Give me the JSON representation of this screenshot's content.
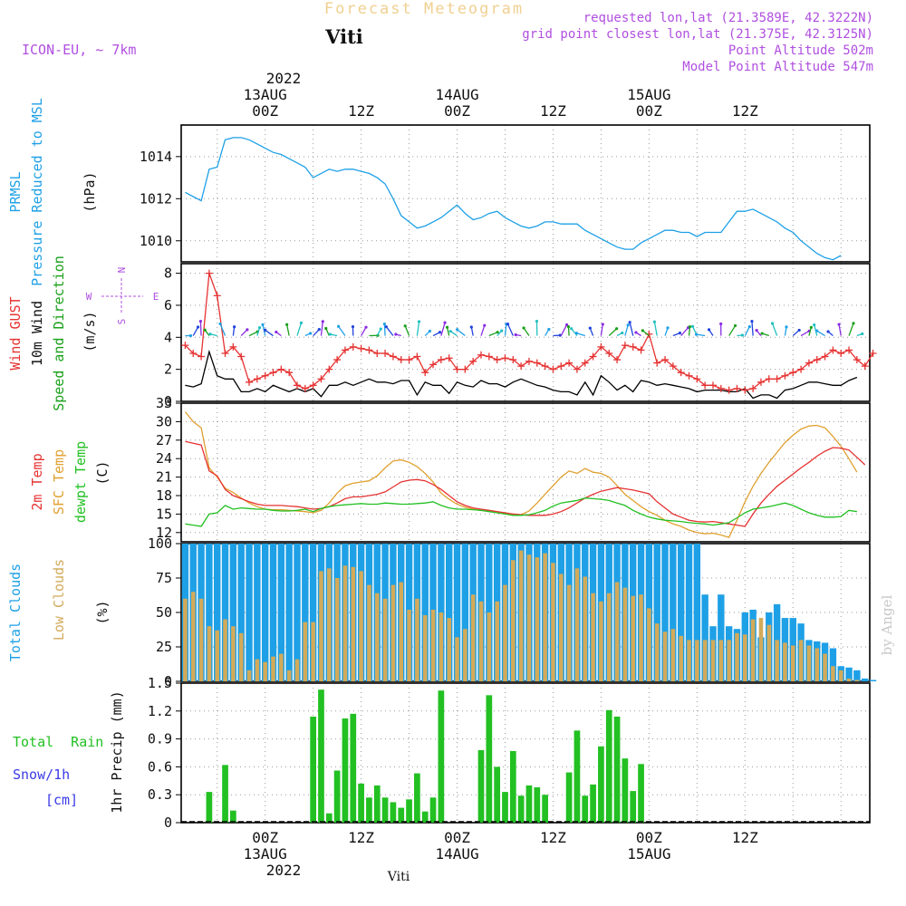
{
  "header": {
    "product": "Forecast Meteogram",
    "station": "Viti",
    "model": "ICON-EU, ~ 7km",
    "requested": "requested lon,lat (21.3589E, 42.3222N)",
    "gridpoint": "grid point closest lon,lat (21.375E, 42.3125N)",
    "point_alt": "Point Altitude 502m",
    "model_alt": "Model Point Altitude 547m",
    "credit": "by Angel",
    "footer_station": "Viti"
  },
  "time_axis": {
    "year": "2022",
    "ticks": [
      {
        "label": "00Z",
        "date": "13AUG",
        "hour": 0
      },
      {
        "label": "12Z",
        "date": "",
        "hour": 12
      },
      {
        "label": "00Z",
        "date": "14AUG",
        "hour": 24
      },
      {
        "label": "12Z",
        "date": "",
        "hour": 36
      },
      {
        "label": "00Z",
        "date": "15AUG",
        "hour": 48
      },
      {
        "label": "12Z",
        "date": "",
        "hour": 60
      }
    ]
  },
  "colors": {
    "pressure": "#1ea0e6",
    "gust": "#e63232",
    "wind10m": "#000000",
    "wind_dir": "#1aa01a",
    "temp2m": "#e63232",
    "sfc_temp": "#e0a030",
    "dewpt": "#22c022",
    "total_clouds": "#1ea0e6",
    "low_clouds": "#d2aa5a",
    "rain": "#22c022",
    "snow": "#3a3ae6",
    "title_gold": "#f0d090",
    "info_purple": "#b04fe0"
  },
  "chart_data": [
    {
      "type": "line",
      "panel": "pressure",
      "ylabel_lines": [
        "PRMSL",
        "Pressure Reduced to MSL"
      ],
      "unit": "(hPa)",
      "x_hours_start": -10,
      "x_hours_step": 1,
      "ylim": [
        1009,
        1015.5
      ],
      "yticks": [
        1010,
        1012,
        1014
      ],
      "grid": true,
      "series": [
        {
          "name": "PRMSL",
          "values": [
            1012.3,
            1012.1,
            1011.9,
            1013.4,
            1013.5,
            1014.8,
            1014.9,
            1014.9,
            1014.8,
            1014.6,
            1014.4,
            1014.2,
            1014.1,
            1013.9,
            1013.7,
            1013.5,
            1013.0,
            1013.2,
            1013.4,
            1013.3,
            1013.4,
            1013.4,
            1013.3,
            1013.2,
            1013.0,
            1012.7,
            1012.0,
            1011.2,
            1010.9,
            1010.6,
            1010.7,
            1010.9,
            1011.1,
            1011.4,
            1011.7,
            1011.3,
            1011.0,
            1011.1,
            1011.3,
            1011.4,
            1011.1,
            1010.9,
            1010.7,
            1010.6,
            1010.7,
            1010.9,
            1010.9,
            1010.8,
            1010.8,
            1010.8,
            1010.5,
            1010.3,
            1010.1,
            1009.9,
            1009.7,
            1009.6,
            1009.6,
            1009.9,
            1010.1,
            1010.3,
            1010.5,
            1010.5,
            1010.4,
            1010.4,
            1010.2,
            1010.4,
            1010.4,
            1010.4,
            1010.9,
            1011.4,
            1011.4,
            1011.5,
            1011.3,
            1011.1,
            1010.9,
            1010.6,
            1010.4,
            1010.0,
            1009.7,
            1009.4,
            1009.2,
            1009.1,
            1009.3
          ]
        }
      ]
    },
    {
      "type": "line",
      "panel": "wind",
      "ylabel_lines": [
        "Wind GUST",
        "10m Wind",
        "Speed and Direction"
      ],
      "unit": "(m/s)",
      "compass": {
        "n": "N",
        "s": "S",
        "w": "W",
        "e": "E"
      },
      "x_hours_start": -10,
      "x_hours_step": 1,
      "ylim": [
        0,
        8.6
      ],
      "yticks": [
        0,
        2,
        4,
        6,
        8
      ],
      "grid": true,
      "series": [
        {
          "name": "Wind GUST",
          "values": [
            3.5,
            3.0,
            2.8,
            8.0,
            6.6,
            3.0,
            3.4,
            2.8,
            1.2,
            1.4,
            1.6,
            1.8,
            2.0,
            1.8,
            1.0,
            0.8,
            1.0,
            1.4,
            2.0,
            2.6,
            3.2,
            3.4,
            3.3,
            3.2,
            3.0,
            3.0,
            2.8,
            2.6,
            2.6,
            2.8,
            1.8,
            2.3,
            2.6,
            2.7,
            2.0,
            2.0,
            2.5,
            2.9,
            2.8,
            2.6,
            2.7,
            2.6,
            2.2,
            2.5,
            2.4,
            2.2,
            2.0,
            2.2,
            2.4,
            2.0,
            2.4,
            2.8,
            3.4,
            3.0,
            2.6,
            3.5,
            3.4,
            3.2,
            4.2,
            2.4,
            2.6,
            2.2,
            1.8,
            1.6,
            1.4,
            1.0,
            1.0,
            0.8,
            0.7,
            0.8,
            0.7,
            0.8,
            1.2,
            1.4,
            1.4,
            1.6,
            1.8,
            2.0,
            2.4,
            2.6,
            2.8,
            3.2,
            3.0,
            3.2,
            2.6,
            2.2,
            3.0
          ]
        },
        {
          "name": "10m Wind",
          "values": [
            1.0,
            0.9,
            1.1,
            3.1,
            1.6,
            1.4,
            1.4,
            0.6,
            0.6,
            0.8,
            0.6,
            1.0,
            0.8,
            0.6,
            0.8,
            0.6,
            0.8,
            0.3,
            1.0,
            1.0,
            1.2,
            1.0,
            1.2,
            1.4,
            1.2,
            1.2,
            1.1,
            1.3,
            1.3,
            0.4,
            1.2,
            1.0,
            1.0,
            0.5,
            1.2,
            1.0,
            0.9,
            1.3,
            1.1,
            1.1,
            0.9,
            1.2,
            1.4,
            1.2,
            1.0,
            0.9,
            0.7,
            0.6,
            0.6,
            0.4,
            1.2,
            0.4,
            1.6,
            1.2,
            0.7,
            1.0,
            0.6,
            1.3,
            1.2,
            1.0,
            1.1,
            1.0,
            0.9,
            0.8,
            0.6,
            0.7,
            0.7,
            0.7,
            0.6,
            0.6,
            0.8,
            0.2,
            0.4,
            0.4,
            0.2,
            0.7,
            0.8,
            1.0,
            1.2,
            1.2,
            1.1,
            1.0,
            1.0,
            1.3,
            1.5
          ]
        }
      ]
    },
    {
      "type": "line",
      "panel": "temperature",
      "ylabel_lines": [
        "2m Temp",
        "SFC Temp",
        "dewpt Temp"
      ],
      "unit": "(C)",
      "x_hours_start": -10,
      "x_hours_step": 1,
      "ylim": [
        10.5,
        33
      ],
      "yticks": [
        12,
        15,
        18,
        21,
        24,
        27,
        30,
        33
      ],
      "grid": true,
      "series": [
        {
          "name": "2m Temp",
          "values": [
            26.8,
            26.5,
            26.2,
            22.0,
            21.2,
            19.0,
            18.0,
            17.5,
            17.0,
            16.6,
            16.4,
            16.4,
            16.4,
            16.3,
            16.2,
            16.0,
            15.8,
            15.9,
            16.2,
            16.8,
            17.5,
            17.8,
            17.8,
            18.0,
            18.2,
            18.6,
            19.4,
            20.2,
            20.5,
            20.6,
            20.4,
            19.8,
            19.0,
            18.0,
            17.0,
            16.4,
            16.0,
            15.8,
            15.6,
            15.4,
            15.2,
            15.0,
            14.9,
            14.8,
            14.8,
            14.8,
            15.0,
            15.4,
            16.0,
            16.8,
            17.6,
            18.2,
            18.7,
            19.0,
            19.3,
            19.1,
            18.9,
            18.6,
            18.3,
            17.0,
            16.0,
            15.0,
            14.5,
            14.0,
            13.8,
            13.7,
            13.8,
            13.6,
            13.4,
            13.2,
            13.0,
            15.0,
            16.8,
            18.2,
            19.5,
            20.5,
            21.5,
            22.5,
            23.4,
            24.4,
            25.2,
            25.8,
            25.7,
            25.4,
            24.2,
            23.0
          ]
        },
        {
          "name": "SFC Temp",
          "values": [
            31.6,
            30.0,
            29.0,
            22.5,
            21.0,
            19.2,
            18.5,
            17.6,
            16.8,
            16.2,
            15.8,
            15.7,
            15.7,
            15.6,
            15.5,
            15.4,
            15.2,
            15.6,
            16.8,
            18.4,
            19.6,
            20.0,
            20.2,
            20.4,
            21.2,
            22.5,
            23.6,
            23.8,
            23.4,
            22.7,
            21.6,
            20.2,
            18.4,
            17.4,
            16.6,
            16.1,
            15.8,
            15.6,
            15.5,
            15.3,
            15.1,
            15.0,
            14.9,
            15.5,
            16.8,
            18.2,
            19.6,
            21.0,
            22.0,
            21.6,
            22.4,
            21.8,
            21.6,
            21.0,
            19.6,
            18.2,
            17.2,
            16.2,
            15.4,
            14.8,
            14.0,
            13.4,
            13.0,
            12.4,
            12.0,
            11.8,
            11.9,
            11.6,
            11.2,
            14.0,
            17.0,
            19.5,
            21.6,
            23.4,
            25.0,
            26.6,
            27.8,
            28.8,
            29.3,
            29.4,
            29.0,
            27.6,
            26.0,
            24.0,
            21.8
          ]
        },
        {
          "name": "dewpt Temp",
          "values": [
            13.4,
            13.2,
            13.0,
            15.0,
            15.2,
            16.4,
            15.8,
            16.0,
            15.9,
            15.8,
            15.8,
            15.6,
            15.5,
            15.5,
            15.6,
            15.8,
            15.4,
            15.9,
            16.2,
            16.4,
            16.5,
            16.6,
            16.7,
            16.6,
            16.6,
            16.8,
            16.7,
            16.6,
            16.6,
            16.7,
            16.8,
            17.0,
            16.4,
            16.0,
            15.8,
            15.8,
            15.7,
            15.6,
            15.4,
            15.2,
            15.0,
            14.8,
            14.8,
            14.9,
            15.2,
            15.6,
            16.3,
            16.8,
            17.0,
            17.2,
            17.6,
            17.5,
            17.4,
            17.2,
            16.8,
            16.4,
            15.6,
            15.0,
            14.5,
            14.2,
            14.0,
            13.9,
            13.8,
            13.6,
            13.5,
            13.4,
            13.2,
            13.4,
            13.6,
            14.4,
            15.2,
            15.8,
            16.0,
            16.2,
            16.5,
            16.8,
            16.4,
            15.8,
            15.2,
            14.8,
            14.5,
            14.5,
            14.6,
            15.6,
            15.4
          ]
        }
      ]
    },
    {
      "type": "bar",
      "panel": "clouds",
      "ylabel_lines": [
        "Total Clouds",
        "Low Clouds"
      ],
      "unit": "(%)",
      "x_hours_start": -10,
      "x_hours_step": 1,
      "ylim": [
        0,
        100
      ],
      "yticks": [
        0,
        25,
        50,
        75,
        100
      ],
      "grid": true,
      "series": [
        {
          "name": "Total Clouds",
          "values": [
            100,
            100,
            100,
            100,
            100,
            100,
            100,
            100,
            100,
            100,
            100,
            100,
            100,
            100,
            100,
            100,
            100,
            100,
            100,
            100,
            100,
            100,
            100,
            100,
            100,
            100,
            100,
            100,
            100,
            100,
            100,
            100,
            100,
            100,
            100,
            100,
            100,
            100,
            100,
            100,
            100,
            100,
            100,
            100,
            100,
            100,
            100,
            100,
            100,
            100,
            100,
            100,
            100,
            100,
            100,
            100,
            100,
            100,
            100,
            100,
            100,
            100,
            100,
            100,
            100,
            63,
            40,
            63,
            40,
            38,
            50,
            52,
            32,
            50,
            56,
            46,
            46,
            42,
            30,
            29,
            28,
            24,
            11,
            10,
            8,
            2,
            1
          ]
        },
        {
          "name": "Low Clouds",
          "values": [
            60,
            65,
            60,
            40,
            37,
            45,
            40,
            35,
            8,
            16,
            14,
            18,
            20,
            8,
            16,
            43,
            43,
            80,
            82,
            75,
            84,
            83,
            80,
            70,
            64,
            60,
            70,
            72,
            52,
            60,
            48,
            52,
            50,
            46,
            32,
            38,
            63,
            58,
            50,
            58,
            70,
            88,
            95,
            92,
            90,
            93,
            86,
            78,
            70,
            82,
            76,
            64,
            58,
            64,
            72,
            68,
            62,
            63,
            53,
            42,
            36,
            38,
            33,
            30,
            30,
            30,
            30,
            30,
            30,
            35,
            34,
            45,
            46,
            41,
            30,
            28,
            26,
            30,
            26,
            24,
            20,
            11,
            8,
            2,
            1,
            0,
            0
          ]
        }
      ]
    },
    {
      "type": "bar",
      "panel": "precip",
      "ylabel_lines": [
        "Total Rain",
        "Snow/1h",
        "[cm]"
      ],
      "unit": "1hr Precip (mm)",
      "x_hours_start": -10,
      "x_hours_step": 1,
      "ylim": [
        0,
        1.5
      ],
      "yticks": [
        0,
        0.3,
        0.6,
        0.9,
        1.2,
        1.5
      ],
      "ytick_labels": [
        "0",
        "0.3",
        "0.6",
        "0.9",
        "1.2",
        "1.5"
      ],
      "grid": true,
      "series": [
        {
          "name": "Total Rain",
          "values": [
            0,
            0,
            0,
            0.33,
            0,
            0.62,
            0.13,
            0,
            0,
            0,
            0,
            0,
            0,
            0,
            0,
            0,
            1.14,
            1.43,
            0.1,
            0.56,
            1.12,
            1.17,
            0.42,
            0.27,
            0.4,
            0.27,
            0.22,
            0.16,
            0.25,
            0.53,
            0.12,
            0.27,
            1.42,
            0,
            0,
            0,
            0,
            0.78,
            1.37,
            0.6,
            0.33,
            0.77,
            0.29,
            0.4,
            0.38,
            0.3,
            0,
            0,
            0.54,
            0.99,
            0.29,
            0.41,
            0.82,
            1.21,
            1.14,
            0.69,
            0.34,
            0.63,
            0,
            0,
            0,
            0,
            0,
            0,
            0,
            0,
            0,
            0,
            0,
            0,
            0,
            0,
            0,
            0,
            0,
            0,
            0,
            0,
            0,
            0,
            0,
            0,
            0,
            0,
            0,
            0,
            0
          ]
        },
        {
          "name": "Snow/1h",
          "values": []
        }
      ]
    }
  ]
}
